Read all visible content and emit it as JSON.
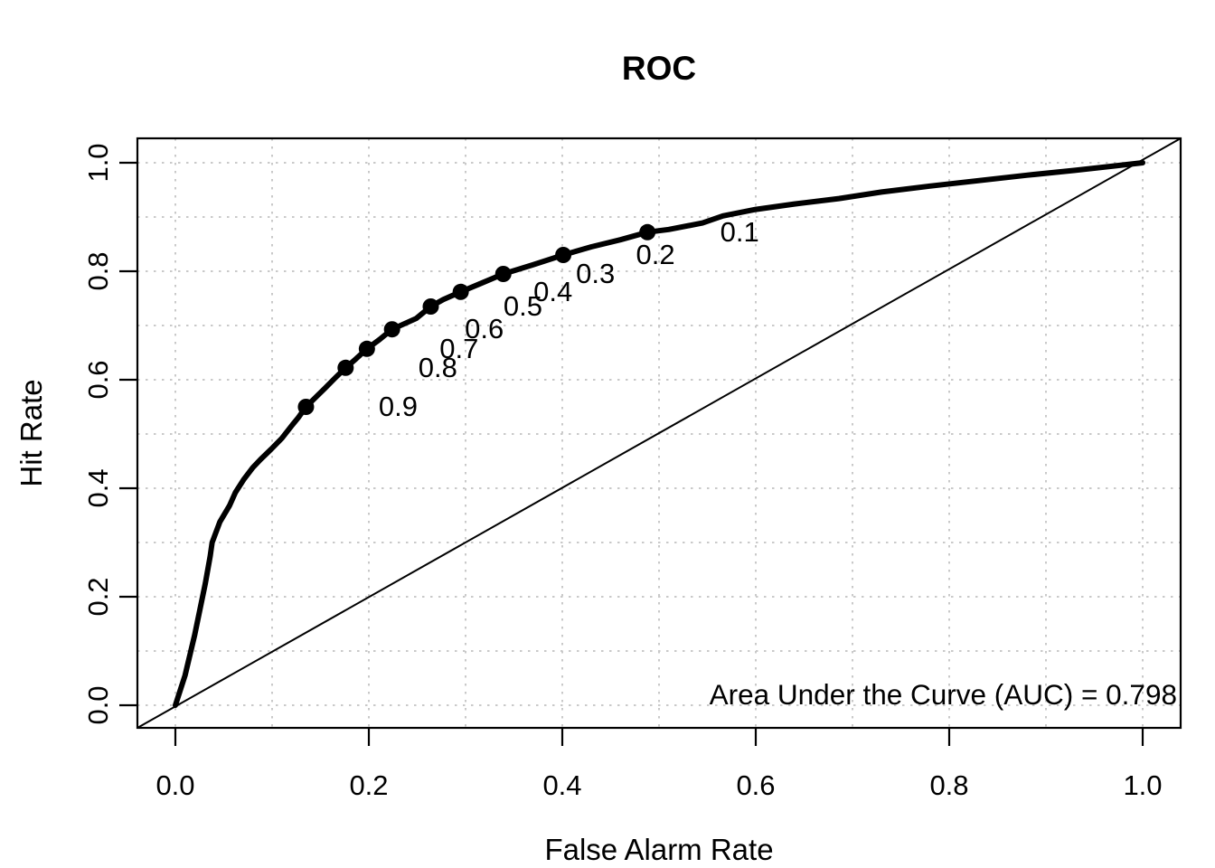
{
  "title": "ROC",
  "annotation": "Area Under the Curve (AUC) = 0.798",
  "colors": {
    "curve": "#000000",
    "diagonal": "#000000",
    "grid": "#c9c9c9",
    "points": "#000000",
    "text": "#000000",
    "background": "#ffffff"
  },
  "chart_data": {
    "type": "line",
    "title": "ROC",
    "xlabel": "False Alarm Rate",
    "ylabel": "Hit Rate",
    "xlim": [
      0,
      1
    ],
    "ylim": [
      0,
      1
    ],
    "xticks": {
      "values": [
        0.0,
        0.2,
        0.4,
        0.6,
        0.8,
        1.0
      ],
      "labels": [
        "0.0",
        "0.2",
        "0.4",
        "0.6",
        "0.8",
        "1.0"
      ]
    },
    "yticks": {
      "values": [
        0.0,
        0.2,
        0.4,
        0.6,
        0.8,
        1.0
      ],
      "labels": [
        "0.0",
        "0.2",
        "0.4",
        "0.6",
        "0.8",
        "1.0"
      ]
    },
    "grid": {
      "on": true,
      "step": 0.1,
      "style": "dotted"
    },
    "auc": 0.798,
    "annotation": "Area Under the Curve (AUC) = 0.798",
    "series": [
      {
        "name": "roc-curve",
        "points": [
          [
            0.0,
            0.0
          ],
          [
            0.01,
            0.055
          ],
          [
            0.02,
            0.13
          ],
          [
            0.031,
            0.225
          ],
          [
            0.036,
            0.275
          ],
          [
            0.038,
            0.3
          ],
          [
            0.046,
            0.338
          ],
          [
            0.056,
            0.368
          ],
          [
            0.062,
            0.392
          ],
          [
            0.071,
            0.417
          ],
          [
            0.08,
            0.438
          ],
          [
            0.088,
            0.453
          ],
          [
            0.099,
            0.472
          ],
          [
            0.11,
            0.492
          ],
          [
            0.121,
            0.517
          ],
          [
            0.127,
            0.53
          ],
          [
            0.135,
            0.55
          ],
          [
            0.155,
            0.585
          ],
          [
            0.165,
            0.603
          ],
          [
            0.176,
            0.622
          ],
          [
            0.187,
            0.639
          ],
          [
            0.198,
            0.657
          ],
          [
            0.211,
            0.674
          ],
          [
            0.224,
            0.693
          ],
          [
            0.249,
            0.713
          ],
          [
            0.264,
            0.735
          ],
          [
            0.277,
            0.748
          ],
          [
            0.295,
            0.762
          ],
          [
            0.315,
            0.777
          ],
          [
            0.339,
            0.795
          ],
          [
            0.37,
            0.812
          ],
          [
            0.401,
            0.83
          ],
          [
            0.43,
            0.845
          ],
          [
            0.46,
            0.858
          ],
          [
            0.488,
            0.872
          ],
          [
            0.51,
            0.877
          ],
          [
            0.545,
            0.889
          ],
          [
            0.566,
            0.902
          ],
          [
            0.6,
            0.914
          ],
          [
            0.64,
            0.924
          ],
          [
            0.686,
            0.934
          ],
          [
            0.73,
            0.946
          ],
          [
            0.78,
            0.957
          ],
          [
            0.83,
            0.967
          ],
          [
            0.88,
            0.977
          ],
          [
            0.93,
            0.986
          ],
          [
            0.97,
            0.994
          ],
          [
            1.0,
            1.0
          ]
        ]
      },
      {
        "name": "chance-diagonal",
        "points": [
          [
            -0.04,
            -0.04
          ],
          [
            1.04,
            1.04
          ]
        ]
      }
    ],
    "criterion_points": [
      {
        "label": "0.9",
        "x": 0.135,
        "y": 0.55
      },
      {
        "label": "0.8",
        "x": 0.176,
        "y": 0.622
      },
      {
        "label": "0.7",
        "x": 0.198,
        "y": 0.657
      },
      {
        "label": "0.6",
        "x": 0.224,
        "y": 0.693
      },
      {
        "label": "0.5",
        "x": 0.264,
        "y": 0.735
      },
      {
        "label": "0.4",
        "x": 0.295,
        "y": 0.762
      },
      {
        "label": "0.3",
        "x": 0.339,
        "y": 0.795
      },
      {
        "label": "0.2",
        "x": 0.401,
        "y": 0.83
      },
      {
        "label": "0.1",
        "x": 0.488,
        "y": 0.872
      }
    ]
  }
}
